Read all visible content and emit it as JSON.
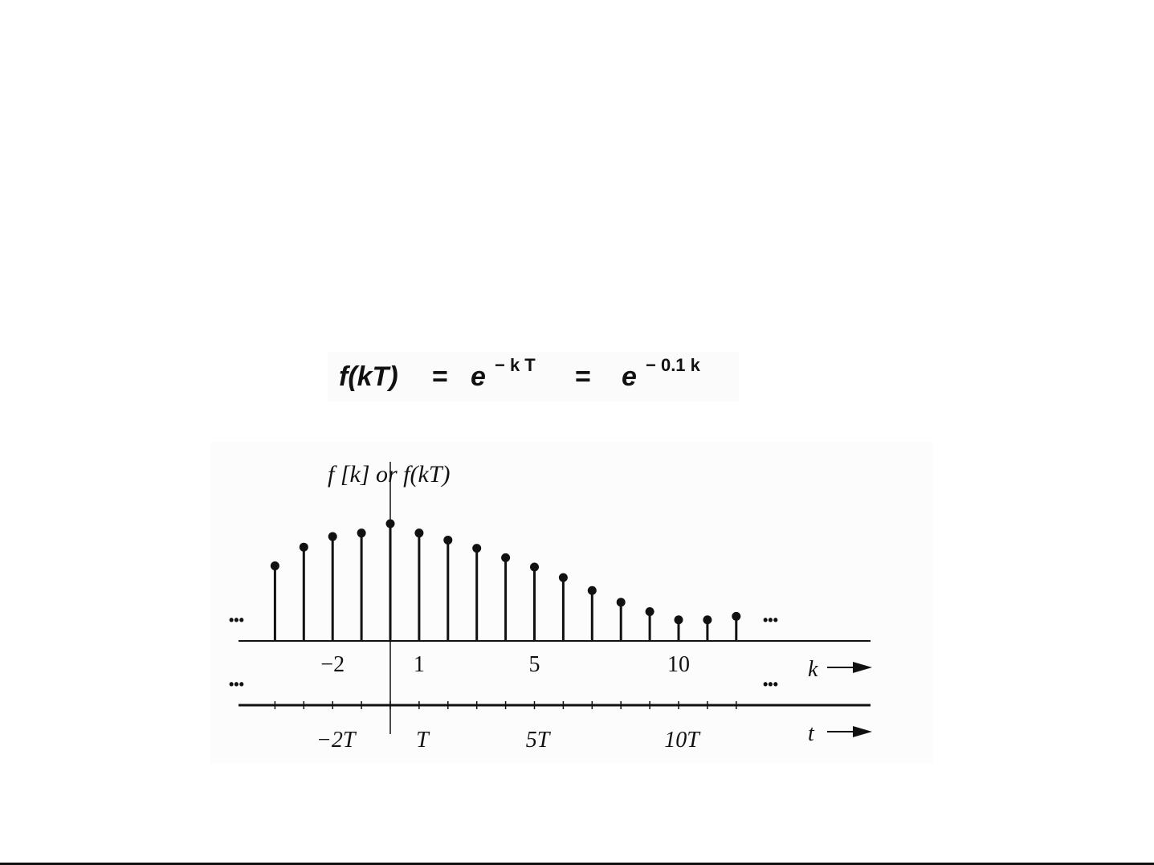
{
  "formula": {
    "lhs": "f(kT)",
    "eq1": "=",
    "base1": "e",
    "exp1": "− k T",
    "eq2": "=",
    "base2": "e",
    "exp2": "− 0.1 k"
  },
  "chart_data": {
    "type": "stem",
    "ylabel": "f [k]  or f(kT)",
    "xlabel_k": "k",
    "xlabel_t": "t",
    "k": [
      -4,
      -3,
      -2,
      -1,
      0,
      1,
      2,
      3,
      4,
      5,
      6,
      7,
      8,
      9,
      10,
      11,
      12
    ],
    "values": [
      0.64,
      0.8,
      0.89,
      0.92,
      1.0,
      0.92,
      0.86,
      0.79,
      0.71,
      0.63,
      0.54,
      0.43,
      0.33,
      0.25,
      0.18,
      0.18,
      0.21
    ],
    "k_ticks": [
      {
        "k": -2,
        "label": "−2"
      },
      {
        "k": 1,
        "label": "1"
      },
      {
        "k": 5,
        "label": "5"
      },
      {
        "k": 10,
        "label": "10"
      }
    ],
    "t_ticks": [
      {
        "k": -2,
        "label": "−2T"
      },
      {
        "k": 1,
        "label": "T"
      },
      {
        "k": 5,
        "label": "5T"
      },
      {
        "k": 10,
        "label": "10T"
      }
    ],
    "ellipsis": "•••",
    "grid": false
  }
}
